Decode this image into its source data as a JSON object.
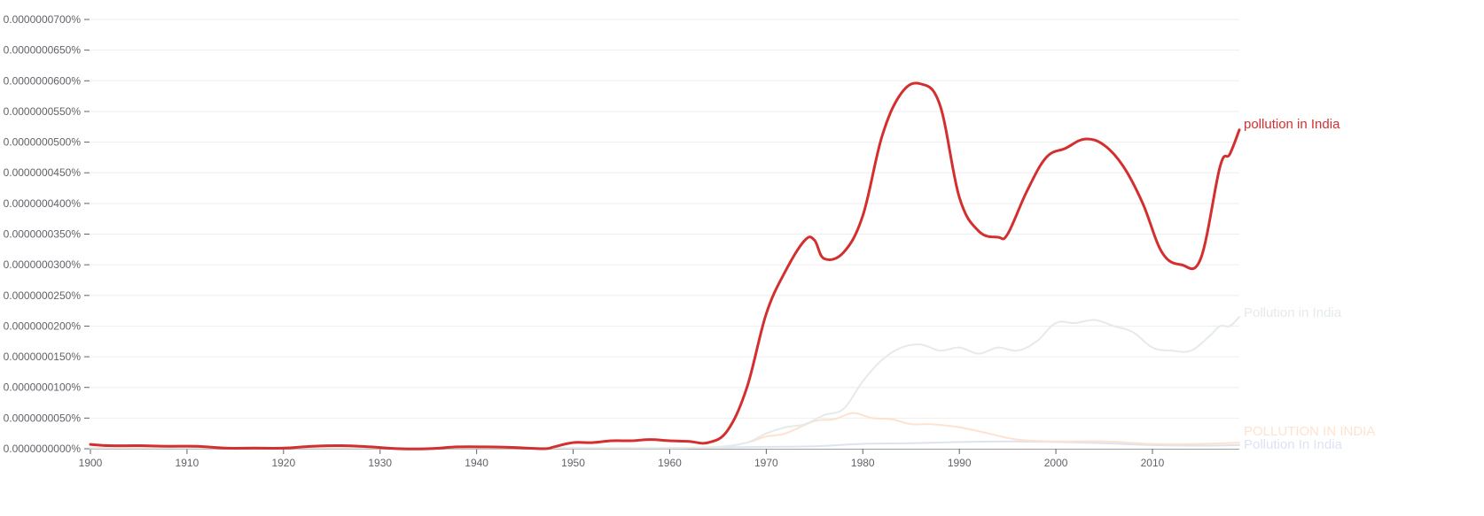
{
  "chart_data": {
    "type": "line",
    "title": "",
    "xlabel": "",
    "ylabel": "",
    "xlim": [
      1900,
      2019
    ],
    "ylim": [
      0,
      7e-07
    ],
    "grid": true,
    "legend": "inline-right",
    "x_ticks": [
      1900,
      1910,
      1920,
      1930,
      1940,
      1950,
      1960,
      1970,
      1980,
      1990,
      2000,
      2010
    ],
    "x_tick_labels": [
      "1900",
      "1910",
      "1920",
      "1930",
      "1940",
      "1950",
      "1960",
      "1970",
      "1980",
      "1990",
      "2000",
      "2010"
    ],
    "y_ticks": [
      0,
      5e-08,
      1e-07,
      1.5e-07,
      2e-07,
      2.5e-07,
      3e-07,
      3.5e-07,
      4e-07,
      4.5e-07,
      5e-07,
      5.5e-07,
      6e-07,
      6.5e-07,
      7e-07
    ],
    "y_tick_labels": [
      "0.0000000000%",
      "0.0000000050%",
      "0.0000000100%",
      "0.0000000150%",
      "0.0000000200%",
      "0.0000000250%",
      "0.0000000300%",
      "0.0000000350%",
      "0.0000000400%",
      "0.0000000450%",
      "0.0000000500%",
      "0.0000000550%",
      "0.0000000600%",
      "0.0000000650%",
      "0.0000000700%"
    ],
    "series": [
      {
        "name": "Pollution In India",
        "color": "#dde3f0",
        "width": 2,
        "points": [
          [
            1900,
            0.001
          ],
          [
            1950,
            0.001
          ],
          [
            1960,
            0.001
          ],
          [
            1965,
            0.002
          ],
          [
            1970,
            0.003
          ],
          [
            1975,
            0.004
          ],
          [
            1980,
            0.008
          ],
          [
            1985,
            0.009
          ],
          [
            1990,
            0.011
          ],
          [
            1995,
            0.012
          ],
          [
            2000,
            0.011
          ],
          [
            2005,
            0.009
          ],
          [
            2010,
            0.006
          ],
          [
            2015,
            0.005
          ],
          [
            2019,
            0.006
          ]
        ]
      },
      {
        "name": "POLLUTION IN INDIA",
        "color": "#fde3cf",
        "width": 2,
        "points": [
          [
            1900,
            0.001
          ],
          [
            1950,
            0.001
          ],
          [
            1960,
            0.001
          ],
          [
            1965,
            0.003
          ],
          [
            1968,
            0.01
          ],
          [
            1970,
            0.02
          ],
          [
            1972,
            0.025
          ],
          [
            1975,
            0.045
          ],
          [
            1977,
            0.048
          ],
          [
            1979,
            0.058
          ],
          [
            1981,
            0.05
          ],
          [
            1983,
            0.048
          ],
          [
            1985,
            0.04
          ],
          [
            1987,
            0.04
          ],
          [
            1990,
            0.035
          ],
          [
            1993,
            0.025
          ],
          [
            1996,
            0.015
          ],
          [
            2000,
            0.012
          ],
          [
            2005,
            0.012
          ],
          [
            2010,
            0.008
          ],
          [
            2015,
            0.008
          ],
          [
            2019,
            0.01
          ]
        ]
      },
      {
        "name": "Pollution in India",
        "color": "#e4ebe8",
        "width": 2,
        "points": [
          [
            1900,
            0.001
          ],
          [
            1950,
            0.001
          ],
          [
            1960,
            0.001
          ],
          [
            1965,
            0.003
          ],
          [
            1968,
            0.01
          ],
          [
            1970,
            0.025
          ],
          [
            1972,
            0.035
          ],
          [
            1974,
            0.04
          ],
          [
            1976,
            0.055
          ],
          [
            1978,
            0.065
          ],
          [
            1980,
            0.11
          ],
          [
            1982,
            0.145
          ],
          [
            1984,
            0.165
          ],
          [
            1986,
            0.17
          ],
          [
            1988,
            0.16
          ],
          [
            1990,
            0.165
          ],
          [
            1992,
            0.155
          ],
          [
            1994,
            0.165
          ],
          [
            1996,
            0.16
          ],
          [
            1998,
            0.175
          ],
          [
            2000,
            0.205
          ],
          [
            2002,
            0.205
          ],
          [
            2004,
            0.21
          ],
          [
            2006,
            0.2
          ],
          [
            2008,
            0.19
          ],
          [
            2010,
            0.165
          ],
          [
            2012,
            0.16
          ],
          [
            2014,
            0.16
          ],
          [
            2016,
            0.185
          ],
          [
            2017,
            0.2
          ],
          [
            2018,
            0.2
          ],
          [
            2019,
            0.215
          ]
        ]
      },
      {
        "name": "pollution in India",
        "color": "#d32f2f",
        "width": 3,
        "points": [
          [
            1900,
            0.007
          ],
          [
            1902,
            0.005
          ],
          [
            1905,
            0.005
          ],
          [
            1908,
            0.004
          ],
          [
            1911,
            0.004
          ],
          [
            1914,
            0.001
          ],
          [
            1917,
            0.001
          ],
          [
            1920,
            0.001
          ],
          [
            1923,
            0.004
          ],
          [
            1926,
            0.005
          ],
          [
            1929,
            0.003
          ],
          [
            1932,
            0.0
          ],
          [
            1935,
            0.0
          ],
          [
            1938,
            0.003
          ],
          [
            1941,
            0.003
          ],
          [
            1944,
            0.002
          ],
          [
            1947,
            0.0
          ],
          [
            1948,
            0.003
          ],
          [
            1950,
            0.01
          ],
          [
            1952,
            0.01
          ],
          [
            1954,
            0.013
          ],
          [
            1956,
            0.013
          ],
          [
            1958,
            0.015
          ],
          [
            1960,
            0.013
          ],
          [
            1962,
            0.012
          ],
          [
            1964,
            0.01
          ],
          [
            1966,
            0.03
          ],
          [
            1968,
            0.1
          ],
          [
            1970,
            0.22
          ],
          [
            1972,
            0.29
          ],
          [
            1974,
            0.34
          ],
          [
            1975,
            0.34
          ],
          [
            1976,
            0.31
          ],
          [
            1978,
            0.32
          ],
          [
            1980,
            0.38
          ],
          [
            1982,
            0.51
          ],
          [
            1984,
            0.58
          ],
          [
            1986,
            0.595
          ],
          [
            1988,
            0.56
          ],
          [
            1990,
            0.41
          ],
          [
            1992,
            0.355
          ],
          [
            1994,
            0.345
          ],
          [
            1995,
            0.35
          ],
          [
            1997,
            0.42
          ],
          [
            1999,
            0.475
          ],
          [
            2001,
            0.49
          ],
          [
            2003,
            0.505
          ],
          [
            2005,
            0.495
          ],
          [
            2007,
            0.46
          ],
          [
            2009,
            0.4
          ],
          [
            2011,
            0.32
          ],
          [
            2013,
            0.3
          ],
          [
            2015,
            0.31
          ],
          [
            2017,
            0.46
          ],
          [
            2018,
            0.48
          ],
          [
            2019,
            0.52
          ]
        ]
      }
    ],
    "value_units_note": ""
  },
  "labels": {
    "s0": "Pollution In India",
    "s1": "POLLUTION IN INDIA",
    "s2": "Pollution in India",
    "s3": "pollution in India"
  }
}
